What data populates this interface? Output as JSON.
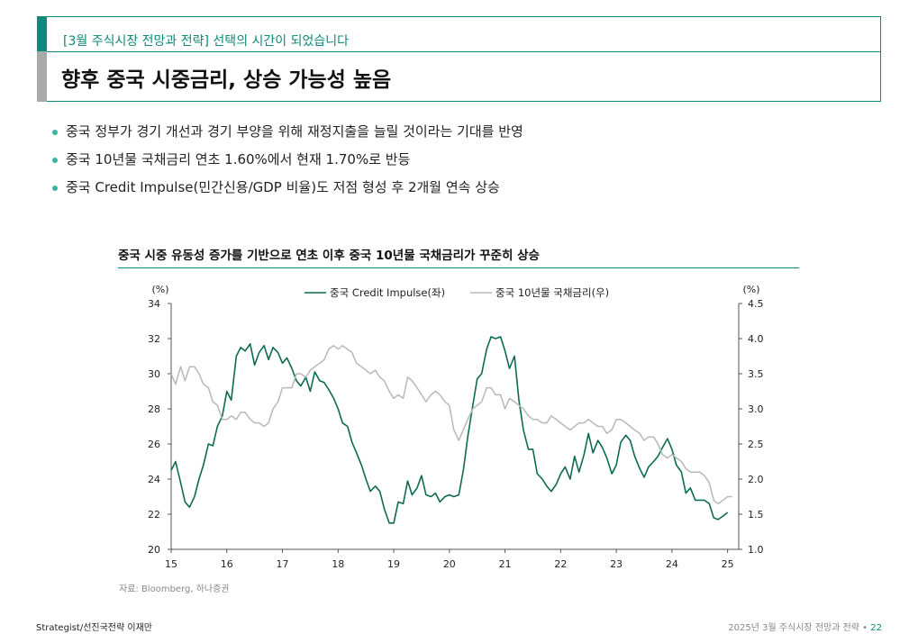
{
  "header": {
    "subtitle": "[3월 주식시장 전망과 전략] 선택의 시간이 되었습니다",
    "title": "향후 중국 시중금리, 상승 가능성 높음"
  },
  "bullets": [
    "중국 정부가 경기 개선과 경기 부양을 위해 재정지출을 늘릴 것이라는 기대를 반영",
    "중국 10년물 국채금리 연초 1.60%에서 현재 1.70%로 반등",
    "중국 Credit Impulse(민간신용/GDP 비율)도 저점 형성 후 2개월 연속 상승"
  ],
  "colors": {
    "accent": "#0c8a7a",
    "series_left": "#0c6b52",
    "series_right": "#b8b8b8",
    "bullet": "#39b3a3"
  },
  "chart_data": {
    "type": "line",
    "title": "중국 시중 유동성 증가를 기반으로 연초 이후 중국 10년물 국채금리가 꾸준히 상승",
    "y_left_unit": "(%)",
    "y_right_unit": "(%)",
    "ylim_left": [
      20,
      34
    ],
    "ylim_right": [
      1.0,
      4.5
    ],
    "yticks_left": [
      "20",
      "22",
      "24",
      "26",
      "28",
      "30",
      "32",
      "34"
    ],
    "yticks_right": [
      "1.0",
      "1.5",
      "2.0",
      "2.5",
      "3.0",
      "3.5",
      "4.0",
      "4.5"
    ],
    "xlim": [
      15,
      25.2
    ],
    "xticks": [
      "15",
      "16",
      "17",
      "18",
      "19",
      "20",
      "21",
      "22",
      "23",
      "24",
      "25"
    ],
    "grid": false,
    "legend": "top-center",
    "series": [
      {
        "name": "중국 Credit Impulse(좌)",
        "axis": "left",
        "color": "#0c6b52",
        "x": [
          15.0,
          15.08,
          15.17,
          15.25,
          15.33,
          15.42,
          15.5,
          15.58,
          15.67,
          15.75,
          15.83,
          15.92,
          16.0,
          16.08,
          16.17,
          16.25,
          16.33,
          16.42,
          16.5,
          16.58,
          16.67,
          16.75,
          16.83,
          16.92,
          17.0,
          17.08,
          17.17,
          17.25,
          17.33,
          17.42,
          17.5,
          17.58,
          17.67,
          17.75,
          17.83,
          17.92,
          18.0,
          18.08,
          18.17,
          18.25,
          18.33,
          18.42,
          18.5,
          18.58,
          18.67,
          18.75,
          18.83,
          18.92,
          19.0,
          19.08,
          19.17,
          19.25,
          19.33,
          19.42,
          19.5,
          19.58,
          19.67,
          19.75,
          19.83,
          19.92,
          20.0,
          20.08,
          20.17,
          20.25,
          20.33,
          20.42,
          20.5,
          20.58,
          20.67,
          20.75,
          20.83,
          20.92,
          21.0,
          21.08,
          21.17,
          21.25,
          21.33,
          21.42,
          21.5,
          21.58,
          21.67,
          21.75,
          21.83,
          21.92,
          22.0,
          22.08,
          22.17,
          22.25,
          22.33,
          22.42,
          22.5,
          22.58,
          22.67,
          22.75,
          22.83,
          22.92,
          23.0,
          23.08,
          23.17,
          23.25,
          23.33,
          23.42,
          23.5,
          23.58,
          23.67,
          23.75,
          23.83,
          23.92,
          24.0,
          24.08,
          24.17,
          24.25,
          24.33,
          24.42,
          24.5,
          24.58,
          24.67,
          24.75,
          24.83,
          24.92,
          25.0
        ],
        "values": [
          24.5,
          25.0,
          23.8,
          22.7,
          22.4,
          23.0,
          24.0,
          24.8,
          26.0,
          25.9,
          27.0,
          27.6,
          29.0,
          28.5,
          31.0,
          31.5,
          31.3,
          31.7,
          30.5,
          31.2,
          31.6,
          30.8,
          31.5,
          31.2,
          30.6,
          30.9,
          30.3,
          29.6,
          29.3,
          29.8,
          29.0,
          30.1,
          29.6,
          29.5,
          29.1,
          28.6,
          28.0,
          27.2,
          27.0,
          26.1,
          25.5,
          24.8,
          24.0,
          23.3,
          23.6,
          23.3,
          22.3,
          21.5,
          21.5,
          22.7,
          22.6,
          23.9,
          23.1,
          23.5,
          24.2,
          23.1,
          23.0,
          23.2,
          22.7,
          23.0,
          23.1,
          23.0,
          23.1,
          24.5,
          26.4,
          28.2,
          29.7,
          30.0,
          31.4,
          32.1,
          32.0,
          32.1,
          31.3,
          30.3,
          31.0,
          28.5,
          26.8,
          25.7,
          25.7,
          24.3,
          24.0,
          23.6,
          23.3,
          23.7,
          24.3,
          24.7,
          24.0,
          25.3,
          24.4,
          25.4,
          26.6,
          25.5,
          26.2,
          25.8,
          25.2,
          24.3,
          24.8,
          26.1,
          26.5,
          26.2,
          25.3,
          24.6,
          24.1,
          24.7,
          25.0,
          25.3,
          25.8,
          26.3,
          25.7,
          24.8,
          24.4,
          23.2,
          23.5,
          22.8,
          22.8,
          22.8,
          22.6,
          21.8,
          21.7,
          21.9,
          22.1
        ]
      },
      {
        "name": "중국 10년물 국채금리(우)",
        "axis": "right",
        "color": "#b8b8b8",
        "x": [
          15.0,
          15.08,
          15.17,
          15.25,
          15.33,
          15.42,
          15.5,
          15.58,
          15.67,
          15.75,
          15.83,
          15.92,
          16.0,
          16.08,
          16.17,
          16.25,
          16.33,
          16.42,
          16.5,
          16.58,
          16.67,
          16.75,
          16.83,
          16.92,
          17.0,
          17.08,
          17.17,
          17.25,
          17.33,
          17.42,
          17.5,
          17.58,
          17.67,
          17.75,
          17.83,
          17.92,
          18.0,
          18.08,
          18.17,
          18.25,
          18.33,
          18.42,
          18.5,
          18.58,
          18.67,
          18.75,
          18.83,
          18.92,
          19.0,
          19.08,
          19.17,
          19.25,
          19.33,
          19.42,
          19.5,
          19.58,
          19.67,
          19.75,
          19.83,
          19.92,
          20.0,
          20.08,
          20.17,
          20.25,
          20.33,
          20.42,
          20.5,
          20.58,
          20.67,
          20.75,
          20.83,
          20.92,
          21.0,
          21.08,
          21.17,
          21.25,
          21.33,
          21.42,
          21.5,
          21.58,
          21.67,
          21.75,
          21.83,
          21.92,
          22.0,
          22.08,
          22.17,
          22.25,
          22.33,
          22.42,
          22.5,
          22.58,
          22.67,
          22.75,
          22.83,
          22.92,
          23.0,
          23.08,
          23.17,
          23.25,
          23.33,
          23.42,
          23.5,
          23.58,
          23.67,
          23.75,
          23.83,
          23.92,
          24.0,
          24.08,
          24.17,
          24.25,
          24.33,
          24.42,
          24.5,
          24.58,
          24.67,
          24.75,
          24.83,
          24.92,
          25.0,
          25.08
        ],
        "values": [
          3.5,
          3.35,
          3.6,
          3.4,
          3.6,
          3.6,
          3.5,
          3.35,
          3.3,
          3.1,
          3.05,
          2.85,
          2.85,
          2.9,
          2.85,
          2.95,
          2.95,
          2.85,
          2.8,
          2.8,
          2.75,
          2.8,
          3.0,
          3.1,
          3.3,
          3.3,
          3.3,
          3.5,
          3.5,
          3.45,
          3.55,
          3.6,
          3.65,
          3.7,
          3.85,
          3.9,
          3.85,
          3.9,
          3.85,
          3.8,
          3.65,
          3.6,
          3.55,
          3.5,
          3.55,
          3.45,
          3.4,
          3.25,
          3.15,
          3.2,
          3.15,
          3.45,
          3.4,
          3.3,
          3.2,
          3.1,
          3.2,
          3.25,
          3.2,
          3.1,
          3.05,
          2.7,
          2.55,
          2.7,
          2.85,
          3.0,
          3.05,
          3.1,
          3.3,
          3.3,
          3.2,
          3.2,
          3.0,
          3.15,
          3.1,
          3.05,
          3.0,
          2.9,
          2.85,
          2.85,
          2.8,
          2.8,
          2.9,
          2.85,
          2.8,
          2.75,
          2.7,
          2.75,
          2.8,
          2.8,
          2.85,
          2.8,
          2.75,
          2.75,
          2.65,
          2.7,
          2.85,
          2.85,
          2.8,
          2.75,
          2.7,
          2.65,
          2.55,
          2.6,
          2.6,
          2.5,
          2.35,
          2.3,
          2.35,
          2.3,
          2.25,
          2.15,
          2.1,
          2.1,
          2.1,
          2.05,
          1.95,
          1.7,
          1.65,
          1.7,
          1.75,
          1.75
        ]
      }
    ]
  },
  "source": "자료: Bloomberg, 하나증권",
  "footer": {
    "left": "Strategist/선진국전략 이재만",
    "right": "2025년 3월 주식시장 전망과 전략",
    "page": "22"
  }
}
